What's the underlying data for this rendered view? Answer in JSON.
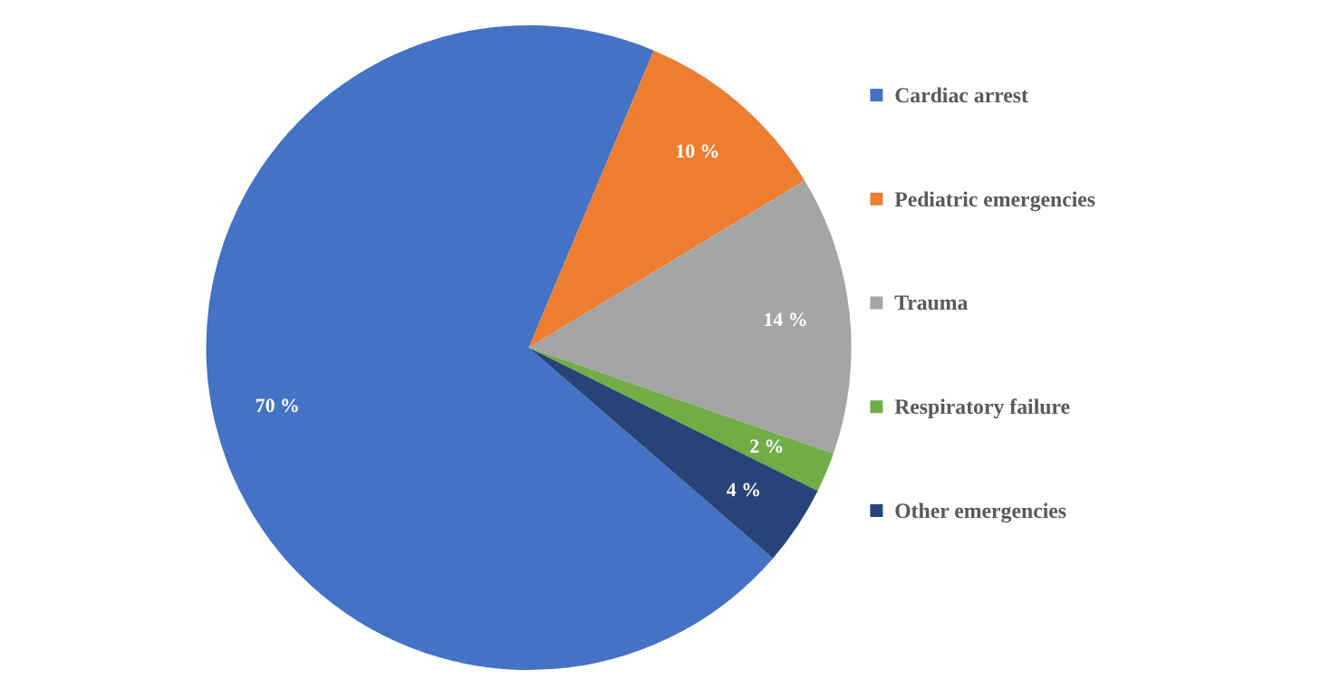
{
  "chart_data": {
    "type": "pie",
    "categories": [
      "Cardiac arrest",
      "Pediatric emergencies",
      "Trauma",
      "Respiratory failure",
      "Other emergencies"
    ],
    "values": [
      70,
      10,
      14,
      2,
      4
    ],
    "colors": [
      "#4472c4",
      "#ed7d31",
      "#a5a5a5",
      "#70ad47",
      "#264478"
    ],
    "value_labels": [
      "70 %",
      "10 %",
      "14 %",
      "2 %",
      "4 %"
    ],
    "legend": "right"
  }
}
